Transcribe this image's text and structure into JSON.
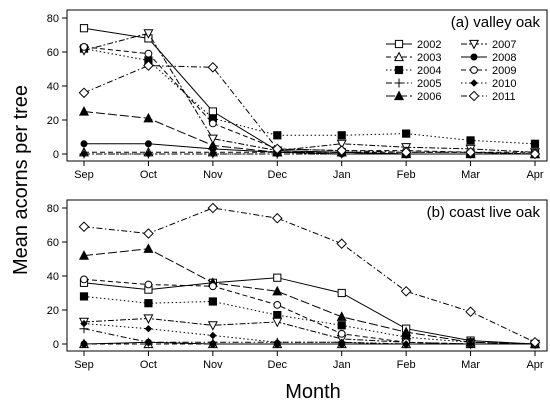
{
  "chart_data": {
    "type": "line",
    "ylabel": "Mean acorns per tree",
    "xlabel": "Month",
    "categories": [
      "Sep",
      "Oct",
      "Nov",
      "Dec",
      "Jan",
      "Feb",
      "Mar",
      "Apr"
    ],
    "legend_placement": "inside-top-right of top panel",
    "legend": [
      {
        "name": "2002",
        "marker": "square-open",
        "dash": "solid"
      },
      {
        "name": "2003",
        "marker": "triangle-up-open",
        "dash": "dashed"
      },
      {
        "name": "2004",
        "marker": "square-filled",
        "dash": "dotted"
      },
      {
        "name": "2005",
        "marker": "plus",
        "dash": "dashdot"
      },
      {
        "name": "2006",
        "marker": "triangle-up-filled",
        "dash": "longdash"
      },
      {
        "name": "2007",
        "marker": "triangle-down-open",
        "dash": "twodash"
      },
      {
        "name": "2008",
        "marker": "circle-filled",
        "dash": "solid"
      },
      {
        "name": "2009",
        "marker": "circle-open",
        "dash": "dashed"
      },
      {
        "name": "2010",
        "marker": "diamond-filled",
        "dash": "dotted"
      },
      {
        "name": "2011",
        "marker": "diamond-open",
        "dash": "dashdot"
      }
    ],
    "panels": [
      {
        "title": "(a) valley oak",
        "ylim": [
          0,
          80
        ],
        "yticks": [
          0,
          20,
          40,
          60,
          80
        ],
        "series": [
          {
            "name": "2002",
            "values": [
              74,
              68,
              25,
              2,
              1,
              0,
              0,
              0
            ]
          },
          {
            "name": "2003",
            "values": [
              1,
              1,
              1,
              1,
              1,
              1,
              1,
              0
            ]
          },
          {
            "name": "2004",
            "values": [
              62,
              55,
              21,
              11,
              11,
              12,
              8,
              6
            ]
          },
          {
            "name": "2005",
            "values": [
              0,
              0,
              0,
              0,
              0,
              0,
              0,
              0
            ]
          },
          {
            "name": "2006",
            "values": [
              25,
              21,
              5,
              1,
              1,
              0,
              0,
              0
            ]
          },
          {
            "name": "2007",
            "values": [
              61,
              71,
              9,
              2,
              6,
              4,
              3,
              1
            ]
          },
          {
            "name": "2008",
            "values": [
              6,
              6,
              3,
              1,
              0,
              0,
              0,
              0
            ]
          },
          {
            "name": "2009",
            "values": [
              63,
              59,
              18,
              3,
              2,
              2,
              1,
              1
            ]
          },
          {
            "name": "2010",
            "values": [
              0,
              0,
              0,
              0,
              0,
              0,
              0,
              0
            ]
          },
          {
            "name": "2011",
            "values": [
              36,
              52,
              51,
              3,
              2,
              1,
              1,
              0
            ]
          }
        ]
      },
      {
        "title": "(b) coast live oak",
        "ylim": [
          0,
          80
        ],
        "yticks": [
          0,
          20,
          40,
          60,
          80
        ],
        "series": [
          {
            "name": "2002",
            "values": [
              36,
              32,
              36,
              39,
              30,
              9,
              2,
              0
            ]
          },
          {
            "name": "2003",
            "values": [
              0,
              0,
              0,
              0,
              0,
              0,
              0,
              0
            ]
          },
          {
            "name": "2004",
            "values": [
              28,
              24,
              25,
              17,
              11,
              4,
              1,
              0
            ]
          },
          {
            "name": "2005",
            "values": [
              9,
              1,
              1,
              1,
              1,
              0,
              0,
              0
            ]
          },
          {
            "name": "2006",
            "values": [
              52,
              56,
              36,
              31,
              16,
              7,
              1,
              0
            ]
          },
          {
            "name": "2007",
            "values": [
              13,
              15,
              11,
              13,
              3,
              1,
              0,
              0
            ]
          },
          {
            "name": "2008",
            "values": [
              0,
              1,
              0,
              0,
              0,
              0,
              0,
              0
            ]
          },
          {
            "name": "2009",
            "values": [
              38,
              35,
              34,
              23,
              6,
              1,
              0,
              0
            ]
          },
          {
            "name": "2010",
            "values": [
              12,
              9,
              5,
              1,
              1,
              0,
              0,
              0
            ]
          },
          {
            "name": "2011",
            "values": [
              69,
              65,
              80,
              74,
              59,
              31,
              19,
              1
            ]
          }
        ]
      }
    ]
  }
}
